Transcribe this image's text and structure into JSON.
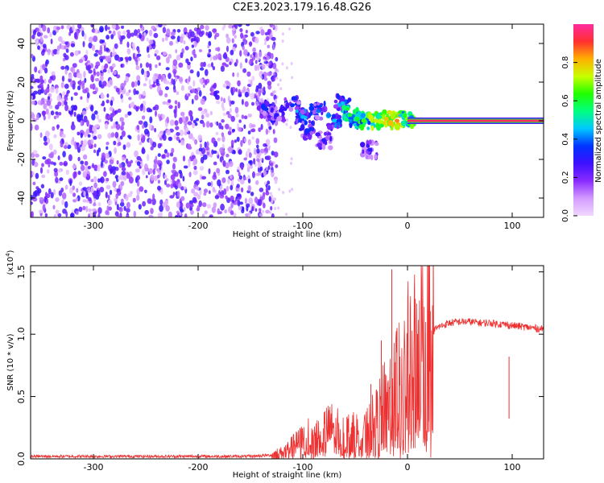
{
  "title": "C2E3.2023.179.16.48.G26",
  "chart_data": [
    {
      "type": "heatmap",
      "xlabel": "Height of straight line (km)",
      "ylabel": "Frequency (Hz)",
      "xlim": [
        -360,
        130
      ],
      "ylim": [
        -50,
        50
      ],
      "x_ticks": [
        -300,
        -200,
        -100,
        0,
        100
      ],
      "x_tick_labels": [
        "-300",
        "-200",
        "-100",
        "0",
        "100"
      ],
      "y_ticks": [
        -40,
        -20,
        0,
        20,
        40
      ],
      "y_tick_labels": [
        "-40",
        "-20",
        "0",
        "20",
        "40"
      ],
      "colorbar": {
        "label": "Normalized spectral amplitude",
        "range": [
          0,
          1
        ],
        "ticks": [
          0.0,
          0.2,
          0.4,
          0.6,
          0.8
        ],
        "tick_labels": [
          "0.0",
          "0.2",
          "0.4",
          "0.6",
          "0.8"
        ],
        "colormap": [
          "#f0d8ff",
          "#d49cff",
          "#8a2cff",
          "#3d10ff",
          "#0033ff",
          "#00c8ff",
          "#00ff80",
          "#20ff00",
          "#c8ff00",
          "#ffb000",
          "#ff3030",
          "#ff2aa0"
        ]
      },
      "noise_region_x": [
        -360,
        -140
      ],
      "noise_amplitude": 0.2,
      "transition_points": [
        {
          "x": -135,
          "y": 6,
          "a": 0.35
        },
        {
          "x": -125,
          "y": 3,
          "a": 0.3
        },
        {
          "x": -110,
          "y": 8,
          "a": 0.35
        },
        {
          "x": -100,
          "y": 2,
          "a": 0.45
        },
        {
          "x": -95,
          "y": -5,
          "a": 0.35
        },
        {
          "x": -85,
          "y": 5,
          "a": 0.4
        },
        {
          "x": -80,
          "y": -10,
          "a": 0.3
        },
        {
          "x": -70,
          "y": 0,
          "a": 0.45
        },
        {
          "x": -62,
          "y": 9,
          "a": 0.45
        },
        {
          "x": -55,
          "y": 3,
          "a": 0.6
        },
        {
          "x": -48,
          "y": 1,
          "a": 0.6
        },
        {
          "x": -42,
          "y": 0,
          "a": 0.65
        },
        {
          "x": -36,
          "y": -15,
          "a": 0.3
        },
        {
          "x": -30,
          "y": 0,
          "a": 0.75
        },
        {
          "x": -20,
          "y": 1,
          "a": 0.8
        },
        {
          "x": -10,
          "y": 0,
          "a": 0.85
        },
        {
          "x": 0,
          "y": 1,
          "a": 0.7
        }
      ],
      "carrier_line": {
        "x_start": 0,
        "x_end": 130,
        "y": 0,
        "a": 0.95
      }
    },
    {
      "type": "line",
      "xlabel": "Height of straight line (km)",
      "ylabel": "SNR (10 * v/v)",
      "y_multiplier_label": "(x10",
      "y_multiplier_exp": "4",
      "xlim": [
        -360,
        130
      ],
      "ylim": [
        0,
        1.55
      ],
      "x_ticks": [
        -300,
        -200,
        -100,
        0,
        100
      ],
      "x_tick_labels": [
        "-300",
        "-200",
        "-100",
        "0",
        "100"
      ],
      "y_ticks": [
        0.0,
        0.5,
        1.0,
        1.5
      ],
      "y_tick_labels": [
        "0.0",
        "0.5",
        "1.0",
        "1.5"
      ],
      "color": "#ee3030",
      "series": [
        {
          "x": [
            -360,
            -300,
            -250,
            -200,
            -150,
            -130,
            -120,
            -110,
            -100,
            -90,
            -80,
            -70,
            -60,
            -50,
            -40,
            -30,
            -20,
            -15,
            -10,
            0,
            10,
            20,
            30,
            40,
            50,
            60,
            70,
            80,
            90,
            100,
            110,
            120,
            130
          ],
          "y": [
            0.02,
            0.02,
            0.02,
            0.02,
            0.02,
            0.03,
            0.05,
            0.1,
            0.15,
            0.2,
            0.22,
            0.25,
            0.2,
            0.2,
            0.22,
            0.3,
            0.45,
            0.5,
            0.6,
            0.75,
            0.9,
            1.0,
            1.06,
            1.09,
            1.1,
            1.1,
            1.09,
            1.09,
            1.08,
            1.07,
            1.06,
            1.05,
            1.04
          ]
        }
      ],
      "spikes": [
        {
          "x": -15,
          "y": 1.52
        },
        {
          "x": -25,
          "y": 0.95
        },
        {
          "x": -10,
          "y": 1.05
        },
        {
          "x": 97,
          "y": 0.82
        },
        {
          "x": 20,
          "y": 1.2
        },
        {
          "x": -35,
          "y": 0.6
        }
      ]
    }
  ]
}
